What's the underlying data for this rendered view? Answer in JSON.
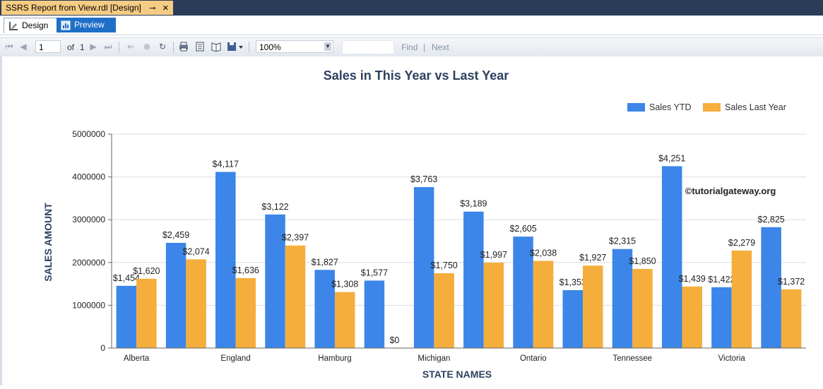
{
  "window": {
    "doc_tab_title": "SSRS Report from View.rdl [Design]",
    "pin_glyph": "⊸",
    "close_glyph": "✕"
  },
  "modes": {
    "design_label": "Design",
    "preview_label": "Preview"
  },
  "toolbar": {
    "page_value": "1",
    "of_label": "of",
    "page_total": "1",
    "zoom_value": "100%",
    "find_label": "Find",
    "next_label": "Next",
    "separator": "|"
  },
  "watermark": "©tutorialgateway.org",
  "chart_data": {
    "type": "bar",
    "title": "Sales in This Year vs Last Year",
    "xlabel": "STATE NAMES",
    "ylabel": "SALES AMOUNT",
    "ylim": [
      0,
      5000000
    ],
    "yticks": [
      "0",
      "1000000",
      "2000000",
      "3000000",
      "4000000",
      "5000000"
    ],
    "grid": true,
    "legend_position": "top-right",
    "categories": [
      "Alberta",
      "",
      "England",
      "",
      "Hamburg",
      "",
      "Michigan",
      "",
      "Ontario",
      "",
      "Tennessee",
      "",
      "Victoria",
      ""
    ],
    "series": [
      {
        "name": "Sales YTD",
        "color": "#3b86e8",
        "values": [
          1454,
          2459,
          4117,
          3122,
          1827,
          1577,
          3763,
          3189,
          2605,
          1353,
          2315,
          4251,
          1422,
          2825
        ],
        "labels": [
          "$1,454",
          "$2,459",
          "$4,117",
          "$3,122",
          "$1,827",
          "$1,577",
          "$3,763",
          "$3,189",
          "$2,605",
          "$1,353",
          "$2,315",
          "$4,251",
          "$1,422",
          "$2,825"
        ]
      },
      {
        "name": "Sales Last Year",
        "color": "#f5ae3b",
        "values": [
          1620,
          2074,
          1636,
          2397,
          1308,
          0,
          1750,
          1997,
          2038,
          1927,
          1850,
          1439,
          2279,
          1372
        ],
        "labels": [
          "$1,620",
          "$2,074",
          "$1,636",
          "$2,397",
          "$1,308",
          "$0",
          "$1,750",
          "$1,997",
          "$2,038",
          "$1,927",
          "$1,850",
          "$1,439",
          "$2,279",
          "$1,372"
        ]
      }
    ]
  }
}
